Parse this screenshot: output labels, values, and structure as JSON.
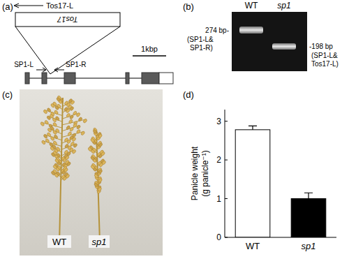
{
  "gene_diagram": {
    "label": "(a)",
    "primers": [
      "Tos17-L",
      "SP1-L",
      "SP1-R"
    ],
    "insert": "Tos17",
    "scale_bar": "1kbp"
  },
  "gel": {
    "label": "(b)",
    "lanes": [
      "WT",
      "sp1"
    ],
    "bands": [
      {
        "size": "274 bp-",
        "primers": [
          "(SP1-L&",
          "SP1-R)"
        ]
      },
      {
        "size": "-198 bp",
        "primers": [
          "(SP1-L&",
          "Tos17-L)"
        ]
      }
    ]
  },
  "photo": {
    "label": "(c)",
    "labels": [
      "WT",
      "sp1"
    ]
  },
  "chart_data": {
    "type": "bar",
    "title": "(d)",
    "y_label": [
      "Panicle weight",
      "(g panicle⁻¹)"
    ],
    "categories": [
      "WT",
      "sp1"
    ],
    "values": [
      2.78,
      1.0
    ],
    "errors": [
      0.1,
      0.15
    ],
    "colors": [
      "#ffffff",
      "#000000"
    ],
    "ylim": [
      0,
      3.3
    ],
    "yticks": [
      0,
      1,
      2,
      3
    ]
  }
}
